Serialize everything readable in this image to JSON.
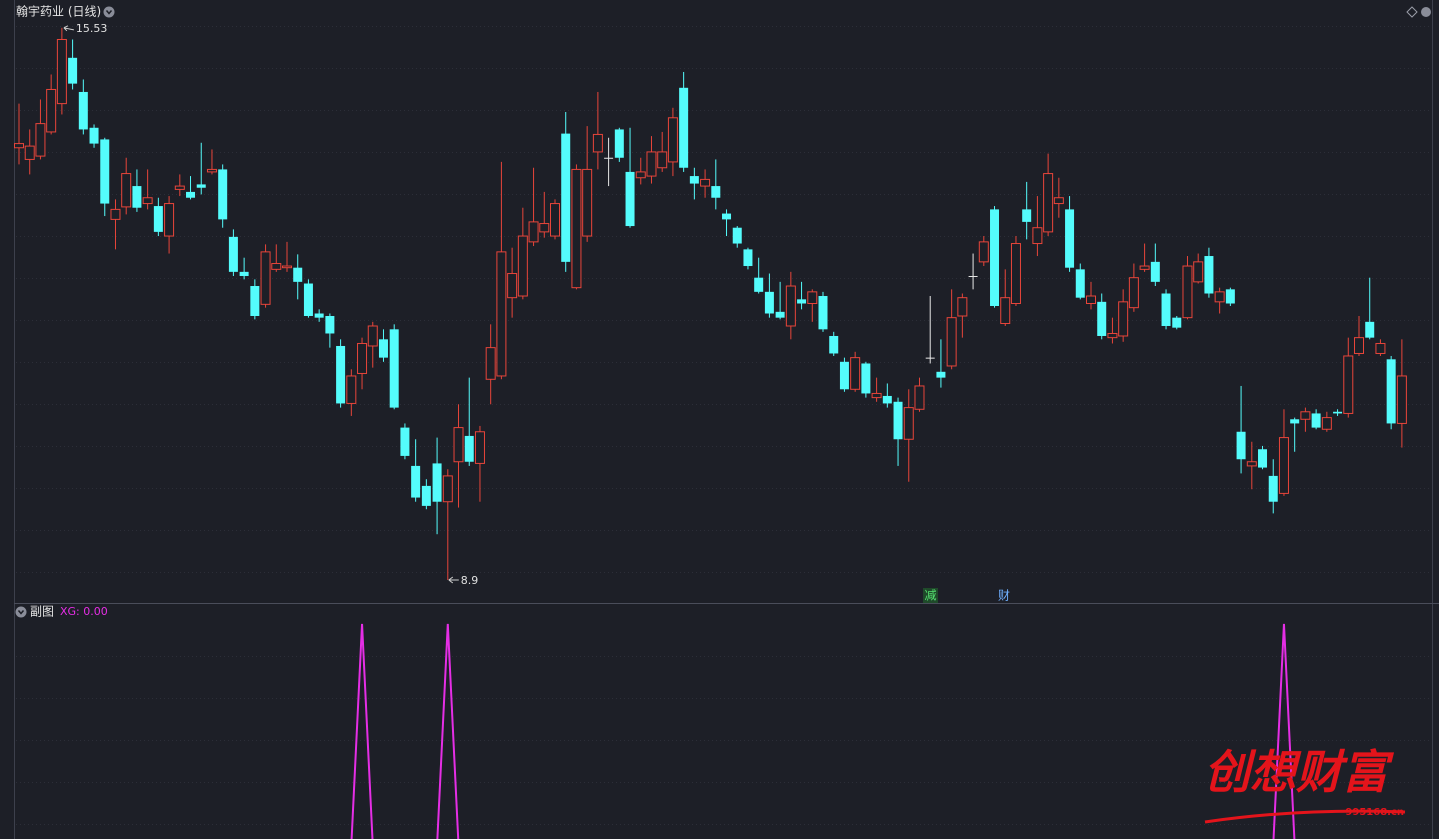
{
  "chart_data": [
    {
      "type": "candlestick",
      "title": "翰宇药业 (日线)",
      "up_color": "#e8453a",
      "down_color": "#54fcfc",
      "flat_color": "#e8e8e8",
      "ylim": [
        8.66,
        15.6
      ],
      "open": [
        14.09,
        13.95,
        13.99,
        14.28,
        14.62,
        15.17,
        14.76,
        14.33,
        14.19,
        13.23,
        13.38,
        13.63,
        13.42,
        13.39,
        13.03,
        13.59,
        13.56,
        13.65,
        13.8,
        13.83,
        13.02,
        12.6,
        12.43,
        12.21,
        12.63,
        12.65,
        12.65,
        12.46,
        12.1,
        12.07,
        11.71,
        11.02,
        11.38,
        11.71,
        11.79,
        11.91,
        10.73,
        10.27,
        10.03,
        10.3,
        9.84,
        10.32,
        10.63,
        10.3,
        11.31,
        11.35,
        12.29,
        12.31,
        12.96,
        13.08,
        13.03,
        14.26,
        12.41,
        13.03,
        14.04,
        13.97,
        14.31,
        13.8,
        13.73,
        13.75,
        13.85,
        13.92,
        14.81,
        13.75,
        13.63,
        13.63,
        13.3,
        13.13,
        12.87,
        12.53,
        12.36,
        12.12,
        11.95,
        12.27,
        12.22,
        12.31,
        11.83,
        11.52,
        11.19,
        11.5,
        11.09,
        11.11,
        11.04,
        10.59,
        10.95,
        11.57,
        11.4,
        11.47,
        12.07,
        12.55,
        12.72,
        13.35,
        11.98,
        12.22,
        13.35,
        12.94,
        13.08,
        13.42,
        13.35,
        12.63,
        12.22,
        12.24,
        11.81,
        11.83,
        12.17,
        12.63,
        12.72,
        12.34,
        12.05,
        12.05,
        12.48,
        12.79,
        12.24,
        12.39,
        10.68,
        10.27,
        10.47,
        10.15,
        9.94,
        10.83,
        10.83,
        10.9,
        10.71,
        10.92,
        10.9,
        11.62,
        12.0,
        11.62,
        11.55,
        10.78
      ],
      "high": [
        14.62,
        14.31,
        14.67,
        14.97,
        15.53,
        15.39,
        14.91,
        14.37,
        14.21,
        13.47,
        13.97,
        13.83,
        13.83,
        13.49,
        13.51,
        13.77,
        13.75,
        14.15,
        14.07,
        13.89,
        13.11,
        12.77,
        12.51,
        12.93,
        12.93,
        12.96,
        12.81,
        12.51,
        12.15,
        12.1,
        11.79,
        11.43,
        11.81,
        12.0,
        11.91,
        11.97,
        10.78,
        10.59,
        10.11,
        10.61,
        10.23,
        11.01,
        11.33,
        10.75,
        11.97,
        13.92,
        12.89,
        13.37,
        13.85,
        13.56,
        13.47,
        14.52,
        13.89,
        14.35,
        14.76,
        14.21,
        14.33,
        14.33,
        13.97,
        14.23,
        14.28,
        14.57,
        15.0,
        13.85,
        13.83,
        13.95,
        13.35,
        13.15,
        12.89,
        12.77,
        12.58,
        12.48,
        12.6,
        12.48,
        12.39,
        12.36,
        11.88,
        11.57,
        11.64,
        11.52,
        11.33,
        11.26,
        11.09,
        11.19,
        11.33,
        12.31,
        11.79,
        12.39,
        12.34,
        12.82,
        13.03,
        13.39,
        12.63,
        13.03,
        13.68,
        13.51,
        14.02,
        13.73,
        13.51,
        12.7,
        12.48,
        12.34,
        12.05,
        12.39,
        12.7,
        12.94,
        12.94,
        12.39,
        12.07,
        12.79,
        12.82,
        12.89,
        12.41,
        12.41,
        11.23,
        10.56,
        10.51,
        10.35,
        10.95,
        10.85,
        10.97,
        10.95,
        10.92,
        10.95,
        11.81,
        12.07,
        12.53,
        11.79,
        11.59,
        11.79
      ],
      "low": [
        13.89,
        13.77,
        13.95,
        14.25,
        14.49,
        14.79,
        14.25,
        14.09,
        13.27,
        12.87,
        13.29,
        13.32,
        13.35,
        13.03,
        12.82,
        13.51,
        13.47,
        13.53,
        13.77,
        13.13,
        12.55,
        12.51,
        12.03,
        12.17,
        12.6,
        12.6,
        12.27,
        12.05,
        12.0,
        11.69,
        10.97,
        10.87,
        11.19,
        11.45,
        11.52,
        10.95,
        10.35,
        9.84,
        9.75,
        9.45,
        8.9,
        9.77,
        10.27,
        9.84,
        11.01,
        11.31,
        12.05,
        12.27,
        12.91,
        13.01,
        12.99,
        12.6,
        12.39,
        12.96,
        13.83,
        13.63,
        13.92,
        13.13,
        13.65,
        13.66,
        13.8,
        13.75,
        13.8,
        13.47,
        13.49,
        13.35,
        13.03,
        12.89,
        12.63,
        12.34,
        12.05,
        12.03,
        11.79,
        12.15,
        12.0,
        11.88,
        11.59,
        11.16,
        11.16,
        11.09,
        11.04,
        10.97,
        10.27,
        10.08,
        10.92,
        11.5,
        11.21,
        11.43,
        11.81,
        12.39,
        12.67,
        12.17,
        11.95,
        12.19,
        12.99,
        12.79,
        13.03,
        13.25,
        12.6,
        12.27,
        12.15,
        11.79,
        11.74,
        11.76,
        12.12,
        12.6,
        12.43,
        11.91,
        11.91,
        12.03,
        12.46,
        12.29,
        12.1,
        12.19,
        10.18,
        9.99,
        10.23,
        9.7,
        9.91,
        10.44,
        10.68,
        10.71,
        10.68,
        10.87,
        10.85,
        11.59,
        11.79,
        11.59,
        10.71,
        10.49
      ],
      "close": [
        14.14,
        14.11,
        14.38,
        14.79,
        15.39,
        14.86,
        14.31,
        14.14,
        13.42,
        13.35,
        13.78,
        13.37,
        13.49,
        13.08,
        13.42,
        13.63,
        13.49,
        13.61,
        13.83,
        13.23,
        12.6,
        12.55,
        12.07,
        12.84,
        12.7,
        12.67,
        12.48,
        12.07,
        12.05,
        11.86,
        11.02,
        11.35,
        11.74,
        11.95,
        11.57,
        10.97,
        10.39,
        9.89,
        9.79,
        9.84,
        10.15,
        10.73,
        10.32,
        10.68,
        11.69,
        12.84,
        12.58,
        13.03,
        13.2,
        13.18,
        13.42,
        12.72,
        13.83,
        13.83,
        14.25,
        13.97,
        13.97,
        13.15,
        13.8,
        14.04,
        14.04,
        14.45,
        13.85,
        13.66,
        13.71,
        13.49,
        13.23,
        12.94,
        12.67,
        12.36,
        12.1,
        12.05,
        12.43,
        12.22,
        12.36,
        11.91,
        11.62,
        11.19,
        11.57,
        11.14,
        11.14,
        11.02,
        10.59,
        10.97,
        11.23,
        11.57,
        11.33,
        12.05,
        12.29,
        12.55,
        12.96,
        12.19,
        12.29,
        12.94,
        13.2,
        13.13,
        13.78,
        13.49,
        12.65,
        12.29,
        12.31,
        11.83,
        11.86,
        12.24,
        12.53,
        12.67,
        12.48,
        11.95,
        11.93,
        12.67,
        12.72,
        12.34,
        12.36,
        12.22,
        10.35,
        10.32,
        10.25,
        9.84,
        10.61,
        10.78,
        10.92,
        10.73,
        10.85,
        10.9,
        11.59,
        11.81,
        11.81,
        11.74,
        10.78,
        11.35
      ]
    },
    {
      "type": "line",
      "title": "副图",
      "ylim": [
        0,
        1.09
      ],
      "series": [
        {
          "name": "XG: 0.00",
          "color": "#e52ee5",
          "values": [
            0,
            0,
            0,
            0,
            0,
            0,
            0,
            0,
            0,
            0,
            0,
            0,
            0,
            0,
            0,
            0,
            0,
            0,
            0,
            0,
            0,
            0,
            0,
            0,
            0,
            0,
            0,
            0,
            0,
            0,
            0,
            0,
            1,
            0,
            0,
            0,
            0,
            0,
            0,
            0,
            1,
            0,
            0,
            0,
            0,
            0,
            0,
            0,
            0,
            0,
            0,
            0,
            0,
            0,
            0,
            0,
            0,
            0,
            0,
            0,
            0,
            0,
            0,
            0,
            0,
            0,
            0,
            0,
            0,
            0,
            0,
            0,
            0,
            0,
            0,
            0,
            0,
            0,
            0,
            0,
            0,
            0,
            0,
            0,
            0,
            0,
            0,
            0,
            0,
            0,
            0,
            0,
            0,
            0,
            0,
            0,
            0,
            0,
            0,
            0,
            0,
            0,
            0,
            0,
            0,
            0,
            0,
            0,
            0,
            0,
            0,
            0,
            0,
            0,
            0,
            0,
            0,
            0,
            1,
            0,
            0,
            0,
            0,
            0,
            0,
            0,
            0,
            0,
            0,
            0
          ]
        }
      ]
    }
  ],
  "markers": [
    "减",
    "财"
  ],
  "watermark": {
    "title": "创想财富",
    "site": "995168.cn"
  }
}
